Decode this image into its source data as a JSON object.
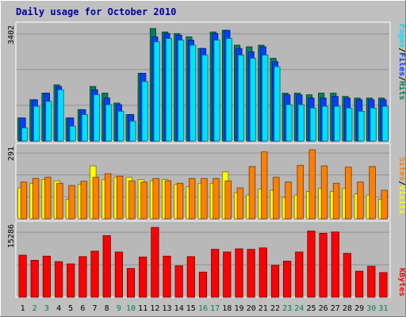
{
  "chart_data": {
    "type": "bar",
    "title": "Daily usage for October 2010",
    "categories": [
      "1",
      "2",
      "3",
      "4",
      "5",
      "6",
      "7",
      "8",
      "9",
      "10",
      "11",
      "12",
      "13",
      "14",
      "15",
      "16",
      "17",
      "18",
      "19",
      "20",
      "21",
      "22",
      "23",
      "24",
      "25",
      "26",
      "27",
      "28",
      "29",
      "30",
      "31"
    ],
    "weekend_days": [
      "2",
      "3",
      "9",
      "10",
      "16",
      "17",
      "23",
      "24",
      "30",
      "31"
    ],
    "panels": [
      {
        "id": "hits-files-pages",
        "ymax_label": "3402",
        "ymax": 3402,
        "legend": [
          {
            "text": "Pages",
            "color": "#00e0ff"
          },
          {
            "text": "/",
            "color": "#000000"
          },
          {
            "text": "Files",
            "color": "#0040ff"
          },
          {
            "text": "/",
            "color": "#000000"
          },
          {
            "text": "Hits",
            "color": "#00805c"
          }
        ],
        "series": [
          {
            "name": "Hits",
            "color": "#00805c",
            "values": [
              700,
              1250,
              1450,
              1700,
              700,
              950,
              1650,
              1450,
              1150,
              800,
              2050,
              3402,
              3300,
              3250,
              3150,
              2800,
              3300,
              3350,
              2900,
              2850,
              2900,
              2500,
              1450,
              1450,
              1400,
              1450,
              1450,
              1350,
              1300,
              1300,
              1300
            ]
          },
          {
            "name": "Files",
            "color": "#0040ff",
            "values": [
              700,
              1250,
              1450,
              1650,
              700,
              950,
              1550,
              1300,
              1100,
              800,
              2050,
              3150,
              3250,
              3200,
              3050,
              2800,
              3250,
              3350,
              2800,
              2700,
              2850,
              2400,
              1400,
              1400,
              1300,
              1300,
              1350,
              1300,
              1250,
              1250,
              1250
            ]
          },
          {
            "name": "Pages",
            "color": "#00e0ff",
            "values": [
              400,
              1050,
              1200,
              1550,
              450,
              800,
              1400,
              1100,
              900,
              600,
              1800,
              3000,
              3100,
              3050,
              2900,
              2600,
              3050,
              3100,
              2600,
              2500,
              2600,
              2250,
              1100,
              1100,
              1000,
              1050,
              1050,
              1000,
              900,
              1000,
              1050
            ]
          }
        ]
      },
      {
        "id": "visits-sites",
        "ymax_label": "291",
        "ymax": 291,
        "legend": [
          {
            "text": "Sites",
            "color": "#ff8000"
          },
          {
            "text": "/",
            "color": "#000000"
          },
          {
            "text": "Visits",
            "color": "#ffff00"
          }
        ],
        "series": [
          {
            "name": "Visits",
            "color": "#ffff00",
            "values": [
              130,
              150,
              165,
              160,
              82,
              145,
              223,
              165,
              175,
              175,
              165,
              160,
              165,
              145,
              135,
              150,
              150,
              198,
              110,
              100,
              125,
              120,
              90,
              100,
              115,
              128,
              115,
              128,
              105,
              100,
              82
            ]
          },
          {
            "name": "Sites",
            "color": "#ff8000",
            "values": [
              155,
              170,
              175,
              150,
              140,
              158,
              175,
              190,
              180,
              160,
              155,
              170,
              160,
              150,
              170,
              170,
              170,
              160,
              130,
              220,
              282,
              175,
              155,
              225,
              291,
              223,
              150,
              218,
              155,
              220,
              120
            ]
          }
        ]
      },
      {
        "id": "kbytes",
        "ymax_label": "15286",
        "ymax": 15286,
        "legend": [
          {
            "text": "KBytes",
            "color": "#ff0000"
          }
        ],
        "series": [
          {
            "name": "KBytes",
            "color": "#ff0000",
            "values": [
              9200,
              8100,
              9000,
              7800,
              7300,
              8900,
              10100,
              13500,
              9900,
              6300,
              8800,
              15286,
              9000,
              6900,
              8900,
              5500,
              10500,
              9900,
              10600,
              10500,
              10800,
              7000,
              7900,
              9900,
              14500,
              14000,
              14300,
              9600,
              5700,
              6800,
              5400
            ]
          }
        ]
      }
    ]
  }
}
